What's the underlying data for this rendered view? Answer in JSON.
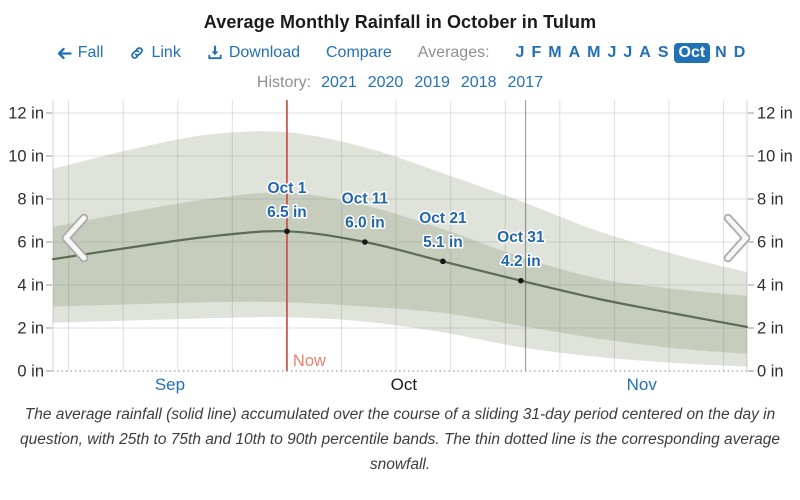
{
  "title": "Average Monthly Rainfall in October in Tulum",
  "toolbar": {
    "back_label": "Fall",
    "link_label": "Link",
    "download_label": "Download",
    "compare_label": "Compare",
    "averages_label": "Averages:",
    "months": [
      {
        "label": "J",
        "selected": false
      },
      {
        "label": "F",
        "selected": false
      },
      {
        "label": "M",
        "selected": false
      },
      {
        "label": "A",
        "selected": false
      },
      {
        "label": "M",
        "selected": false
      },
      {
        "label": "J",
        "selected": false
      },
      {
        "label": "J",
        "selected": false
      },
      {
        "label": "A",
        "selected": false
      },
      {
        "label": "S",
        "selected": false
      },
      {
        "label": "Oct",
        "selected": true
      },
      {
        "label": "N",
        "selected": false
      },
      {
        "label": "D",
        "selected": false
      }
    ],
    "history_label": "History:",
    "years": [
      "2021",
      "2020",
      "2019",
      "2018",
      "2017"
    ],
    "icons": {
      "back": "left-arrow-icon",
      "link": "chain-link-icon",
      "download": "download-icon"
    }
  },
  "colors": {
    "accent_blue": "#2271b5",
    "band_outer": "#dfe3da",
    "band_inner": "#c7cdbd",
    "mean_line": "#5c6b53",
    "now_line": "#c94f41",
    "now_label": "#e8826d",
    "annotation_blue": "#2166ac",
    "snowfall_dotted": "#9a9a9a"
  },
  "chart_data": {
    "type": "area",
    "title": "Average Monthly Rainfall in October in Tulum",
    "xlabel": "",
    "ylabel": "in",
    "ylim": [
      0,
      12
    ],
    "grid": "weekly vertical + 2-inch horizontal gridlines",
    "legend_position": "none",
    "y_axis": {
      "ticks": [
        {
          "value": 0,
          "label": "0 in"
        },
        {
          "value": 2,
          "label": "2 in"
        },
        {
          "value": 4,
          "label": "4 in"
        },
        {
          "value": 6,
          "label": "6 in"
        },
        {
          "value": 8,
          "label": "8 in"
        },
        {
          "value": 10,
          "label": "10 in"
        },
        {
          "value": 12,
          "label": "12 in"
        }
      ],
      "sides": [
        "left",
        "right"
      ]
    },
    "x_axis": {
      "unit": "days since Sep 1",
      "range_days": [
        0,
        89
      ],
      "months": [
        {
          "label": "Sep",
          "day": 15,
          "is_link": true
        },
        {
          "label": "Oct",
          "day": 45,
          "is_link": false
        },
        {
          "label": "Nov",
          "day": 75.5,
          "is_link": true
        }
      ]
    },
    "days_since_sep1": [
      0,
      10,
      20,
      30,
      40,
      50,
      60,
      70,
      80,
      89
    ],
    "series": [
      {
        "name": "90th percentile rainfall",
        "role": "band_outer_top",
        "values": [
          9.4,
          10.3,
          11.0,
          11.1,
          10.4,
          9.2,
          7.9,
          6.5,
          5.4,
          4.6
        ]
      },
      {
        "name": "75th percentile rainfall",
        "role": "band_inner_top",
        "values": [
          6.7,
          7.4,
          8.0,
          8.3,
          7.7,
          6.6,
          5.3,
          4.3,
          3.8,
          3.5
        ]
      },
      {
        "name": "average rainfall",
        "role": "mean_line",
        "values": [
          5.2,
          5.75,
          6.25,
          6.5,
          6.0,
          5.1,
          4.2,
          3.35,
          2.65,
          2.05
        ]
      },
      {
        "name": "25th percentile rainfall",
        "role": "band_inner_bottom",
        "values": [
          3.0,
          3.1,
          3.2,
          3.2,
          3.0,
          2.7,
          2.1,
          1.5,
          1.05,
          0.8
        ]
      },
      {
        "name": "10th percentile rainfall",
        "role": "band_outer_bottom",
        "values": [
          2.25,
          2.35,
          2.45,
          2.5,
          2.3,
          1.8,
          1.1,
          0.65,
          0.37,
          0.2
        ]
      },
      {
        "name": "average snowfall",
        "role": "dotted_line",
        "values": [
          0,
          0,
          0,
          0,
          0,
          0,
          0,
          0,
          0,
          0
        ]
      }
    ],
    "annotations": [
      {
        "date_label": "Oct 1",
        "value_label": "6.5 in",
        "day": 30,
        "value": 6.5
      },
      {
        "date_label": "Oct 11",
        "value_label": "6.0 in",
        "day": 40,
        "value": 6.0
      },
      {
        "date_label": "Oct 21",
        "value_label": "5.1 in",
        "day": 50,
        "value": 5.1
      },
      {
        "date_label": "Oct 31",
        "value_label": "4.2 in",
        "day": 60,
        "value": 4.2
      }
    ],
    "now_marker": {
      "label": "Now",
      "day": 30
    },
    "month_boundary_day": 60.6
  },
  "caption": "The average rainfall (solid line) accumulated over the course of a sliding 31-day period centered on the day in question, with 25th to 75th and 10th to 90th percentile bands. The thin dotted line is the corresponding average snowfall."
}
